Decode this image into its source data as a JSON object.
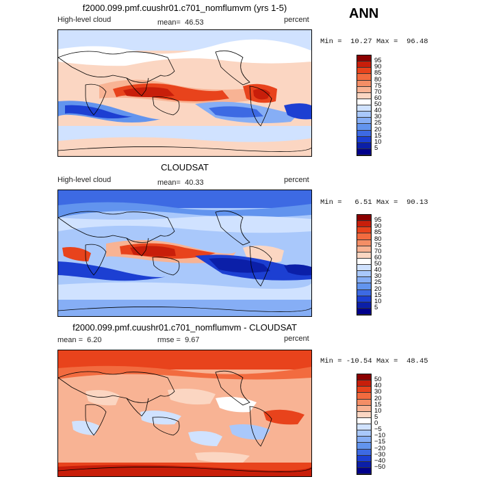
{
  "season": "ANN",
  "panels": [
    {
      "title": "f2000.099.pmf.cuushr01.c701_nomflumvm (yrs 1-5)",
      "left_label": "High-level cloud",
      "mean_label": "mean=",
      "mean_value": "46.53",
      "units": "percent",
      "min_label": "Min =",
      "min_value": "10.27",
      "max_label": "Max =",
      "max_value": "96.48",
      "levels": [
        "95",
        "90",
        "85",
        "80",
        "75",
        "70",
        "60",
        "50",
        "40",
        "30",
        "25",
        "20",
        "15",
        "10",
        "5"
      ],
      "colors": [
        "#8b0000",
        "#c81e0a",
        "#e8431c",
        "#f26b3f",
        "#f48e66",
        "#f8b394",
        "#fbd6c2",
        "#ffffff",
        "#d0e2ff",
        "#a9c8fb",
        "#86aef5",
        "#6294ee",
        "#3d6ae3",
        "#1c3fd2",
        "#0b1fa8",
        "#00008b"
      ]
    },
    {
      "title": "CLOUDSAT",
      "left_label": "High-level cloud",
      "mean_label": "mean=",
      "mean_value": "40.33",
      "units": "percent",
      "min_label": "Min =",
      "min_value": "6.51",
      "max_label": "Max =",
      "max_value": "90.13",
      "levels": [
        "95",
        "90",
        "85",
        "80",
        "75",
        "70",
        "60",
        "50",
        "40",
        "30",
        "25",
        "20",
        "15",
        "10",
        "5"
      ],
      "colors": [
        "#8b0000",
        "#c81e0a",
        "#e8431c",
        "#f26b3f",
        "#f48e66",
        "#f8b394",
        "#fbd6c2",
        "#ffffff",
        "#d0e2ff",
        "#a9c8fb",
        "#86aef5",
        "#6294ee",
        "#3d6ae3",
        "#1c3fd2",
        "#0b1fa8",
        "#00008b"
      ]
    },
    {
      "title": "f2000.099.pmf.cuushr01.c701_nomflumvm - CLOUDSAT",
      "left_label": "mean =",
      "left_value": "6.20",
      "mean_label": "rmse =",
      "mean_value": "9.67",
      "units": "percent",
      "min_label": "Min =",
      "min_value": "-10.54",
      "max_label": "Max =",
      "max_value": "48.45",
      "levels": [
        "50",
        "40",
        "30",
        "20",
        "15",
        "10",
        "5",
        "0",
        "−5",
        "−10",
        "−15",
        "−20",
        "−30",
        "−40",
        "−50"
      ],
      "colors": [
        "#8b0000",
        "#c81e0a",
        "#e8431c",
        "#f26b3f",
        "#f48e66",
        "#f8b394",
        "#fbd6c2",
        "#ffffff",
        "#d0e2ff",
        "#a9c8fb",
        "#86aef5",
        "#6294ee",
        "#3d6ae3",
        "#1c3fd2",
        "#0b1fa8",
        "#00008b"
      ]
    }
  ]
}
